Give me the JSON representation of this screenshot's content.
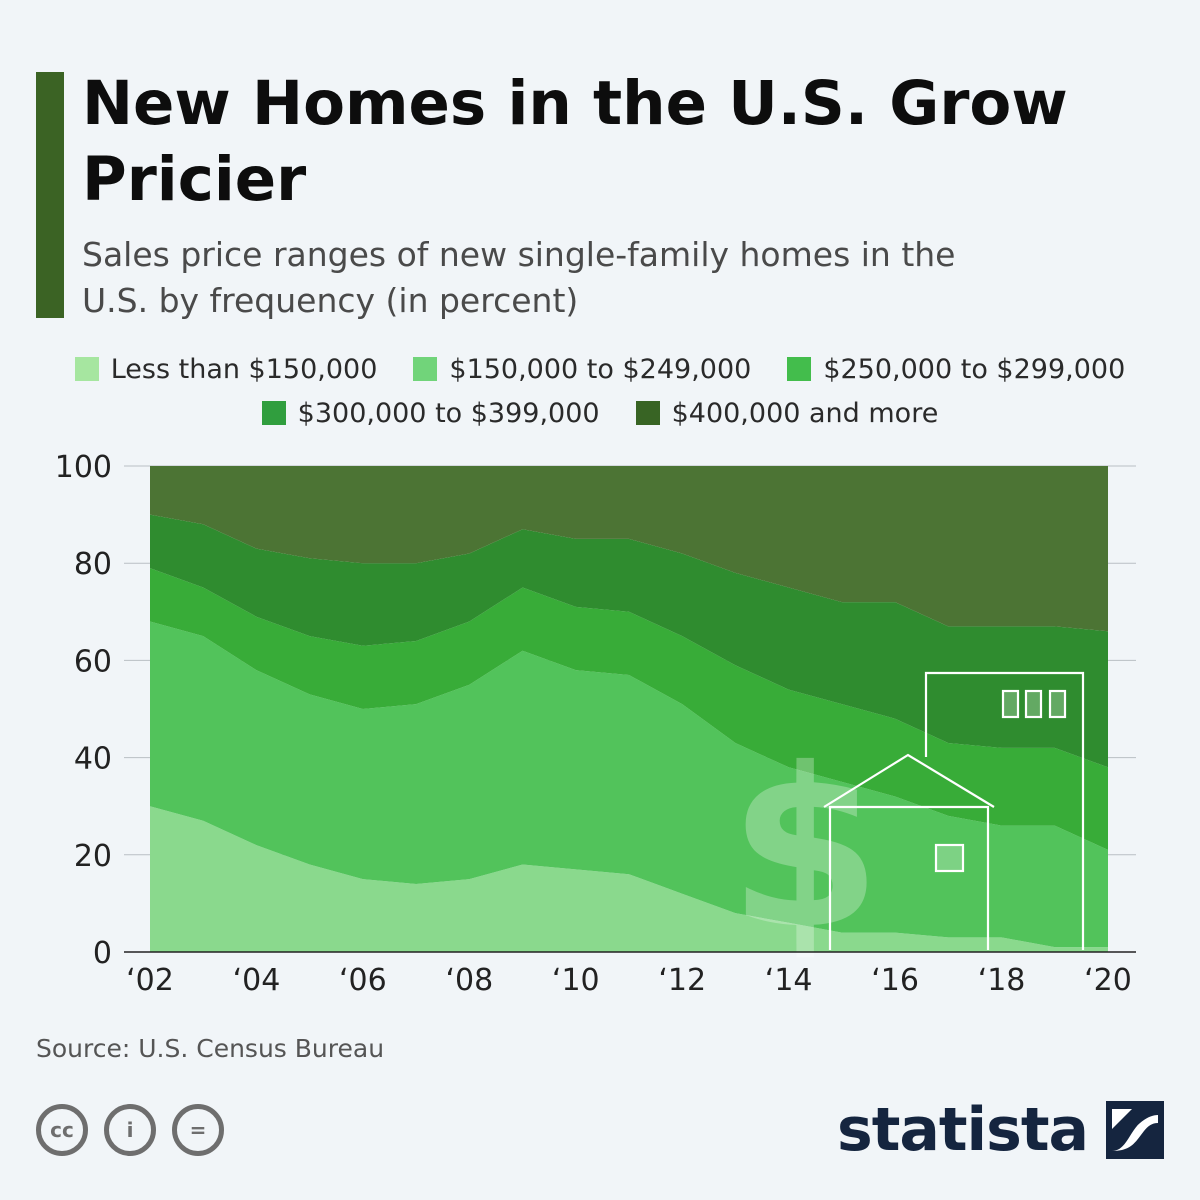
{
  "header": {
    "title": "New Homes in the U.S. Grow Pricier",
    "subtitle": "Sales price ranges of new single-family homes in the U.S. by frequency (in percent)"
  },
  "legend": [
    {
      "label": "Less than $150,000",
      "color": "#a6e6a0"
    },
    {
      "label": "$150,000 to $249,000",
      "color": "#71d47a"
    },
    {
      "label": "$250,000 to $299,000",
      "color": "#43bd4c"
    },
    {
      "label": "$300,000 to $399,000",
      "color": "#309e3e"
    },
    {
      "label": "$400,000 and more",
      "color": "#386424"
    }
  ],
  "chart_data": {
    "type": "area",
    "stacked": true,
    "x": [
      2002,
      2003,
      2004,
      2005,
      2006,
      2007,
      2008,
      2009,
      2010,
      2011,
      2012,
      2013,
      2014,
      2015,
      2016,
      2017,
      2018,
      2019,
      2020
    ],
    "x_tick_labels": [
      "‘02",
      "‘04",
      "‘06",
      "‘08",
      "‘10",
      "‘12",
      "‘14",
      "‘16",
      "‘18",
      "‘20"
    ],
    "y_ticks": [
      "0",
      "20",
      "40",
      "60",
      "80",
      "100"
    ],
    "ylim": [
      0,
      100
    ],
    "grid": true,
    "series": [
      {
        "name": "Less than $150,000",
        "color": "#8ad98d",
        "values": [
          30,
          27,
          22,
          18,
          15,
          14,
          15,
          18,
          17,
          16,
          12,
          8,
          6,
          4,
          4,
          3,
          3,
          1,
          1
        ]
      },
      {
        "name": "$150,000 to $249,000",
        "color": "#52c35b",
        "values": [
          38,
          38,
          36,
          35,
          35,
          37,
          40,
          44,
          41,
          41,
          39,
          35,
          32,
          31,
          28,
          25,
          23,
          25,
          20
        ]
      },
      {
        "name": "$250,000 to $299,000",
        "color": "#38ac38",
        "values": [
          11,
          10,
          11,
          12,
          13,
          13,
          13,
          13,
          13,
          13,
          14,
          16,
          16,
          16,
          16,
          15,
          16,
          16,
          17
        ]
      },
      {
        "name": "$300,000 to $399,000",
        "color": "#2f8c2f",
        "values": [
          11,
          13,
          14,
          16,
          17,
          16,
          14,
          12,
          14,
          15,
          17,
          19,
          21,
          21,
          24,
          24,
          25,
          25,
          28
        ]
      },
      {
        "name": "$400,000 and more",
        "color": "#4c7434",
        "values": [
          10,
          12,
          17,
          19,
          20,
          20,
          18,
          13,
          15,
          15,
          18,
          22,
          25,
          28,
          28,
          33,
          33,
          33,
          34
        ]
      }
    ]
  },
  "source": {
    "label": "Source: U.S. Census Bureau"
  },
  "cc_icons": [
    {
      "name": "cc-icon",
      "text": "cc"
    },
    {
      "name": "attribution-icon",
      "text": "i"
    },
    {
      "name": "no-derivatives-icon",
      "text": "="
    }
  ],
  "logo": {
    "text": "statista"
  }
}
